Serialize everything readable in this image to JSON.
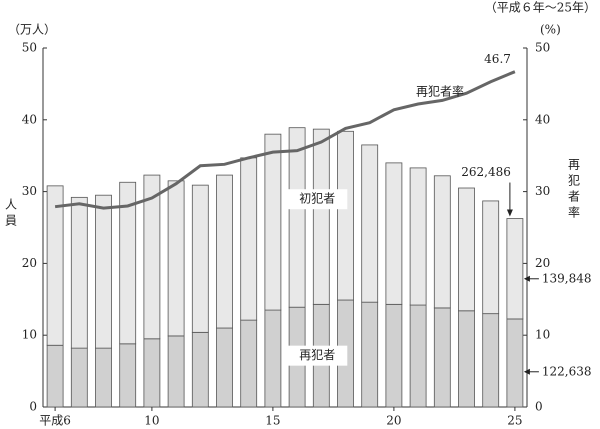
{
  "chart_data": {
    "type": "bar",
    "title": "（平成６年～25年）",
    "y_unit": "（万人）",
    "y2_unit": "(%)",
    "y_label": "人員",
    "y2_label": "再犯者率",
    "stacked": true,
    "categories": [
      "平成6",
      null,
      null,
      null,
      "10",
      null,
      null,
      null,
      null,
      "15",
      null,
      null,
      null,
      null,
      "20",
      null,
      null,
      null,
      null,
      "25"
    ],
    "series": [
      {
        "name": "再犯者",
        "color": "#d0d0d0",
        "values": [
          8.6,
          8.2,
          8.2,
          8.8,
          9.5,
          9.9,
          10.4,
          11.0,
          12.1,
          13.5,
          13.9,
          14.3,
          14.9,
          14.6,
          14.3,
          14.2,
          13.8,
          13.4,
          13.0,
          12.2638
        ],
        "value_labels": [
          null,
          null,
          null,
          null,
          null,
          null,
          null,
          null,
          null,
          null,
          null,
          null,
          null,
          null,
          null,
          null,
          null,
          null,
          null,
          "122,638"
        ]
      },
      {
        "name": "初犯者",
        "color": "#e8e8e8",
        "values": [
          22.2,
          21.0,
          21.3,
          22.5,
          22.8,
          21.6,
          20.5,
          21.3,
          22.6,
          24.5,
          25.0,
          24.4,
          23.5,
          21.9,
          19.7,
          19.1,
          18.4,
          17.1,
          15.7,
          13.9848
        ],
        "value_labels": [
          null,
          null,
          null,
          null,
          null,
          null,
          null,
          null,
          null,
          null,
          null,
          null,
          null,
          null,
          null,
          null,
          null,
          null,
          null,
          "139,848"
        ]
      },
      {
        "name": "再犯者率",
        "type": "line",
        "axis": "y2",
        "color": "#666666",
        "values": [
          27.9,
          28.3,
          27.7,
          28.0,
          29.1,
          31.1,
          33.6,
          33.8,
          34.7,
          35.5,
          35.7,
          36.9,
          38.8,
          39.6,
          41.4,
          42.2,
          42.7,
          43.7,
          45.3,
          46.7
        ],
        "value_labels": [
          null,
          null,
          null,
          null,
          null,
          null,
          null,
          null,
          null,
          null,
          null,
          null,
          null,
          null,
          null,
          null,
          null,
          null,
          null,
          "46.7"
        ]
      }
    ],
    "annotations": [
      {
        "text": "262,486"
      }
    ],
    "ylim": [
      0,
      50
    ],
    "yticks": [
      0,
      10,
      20,
      30,
      40,
      50
    ],
    "y2lim": [
      0,
      50
    ],
    "y2ticks": [
      0,
      10,
      20,
      30,
      40,
      50
    ],
    "grid": false
  }
}
